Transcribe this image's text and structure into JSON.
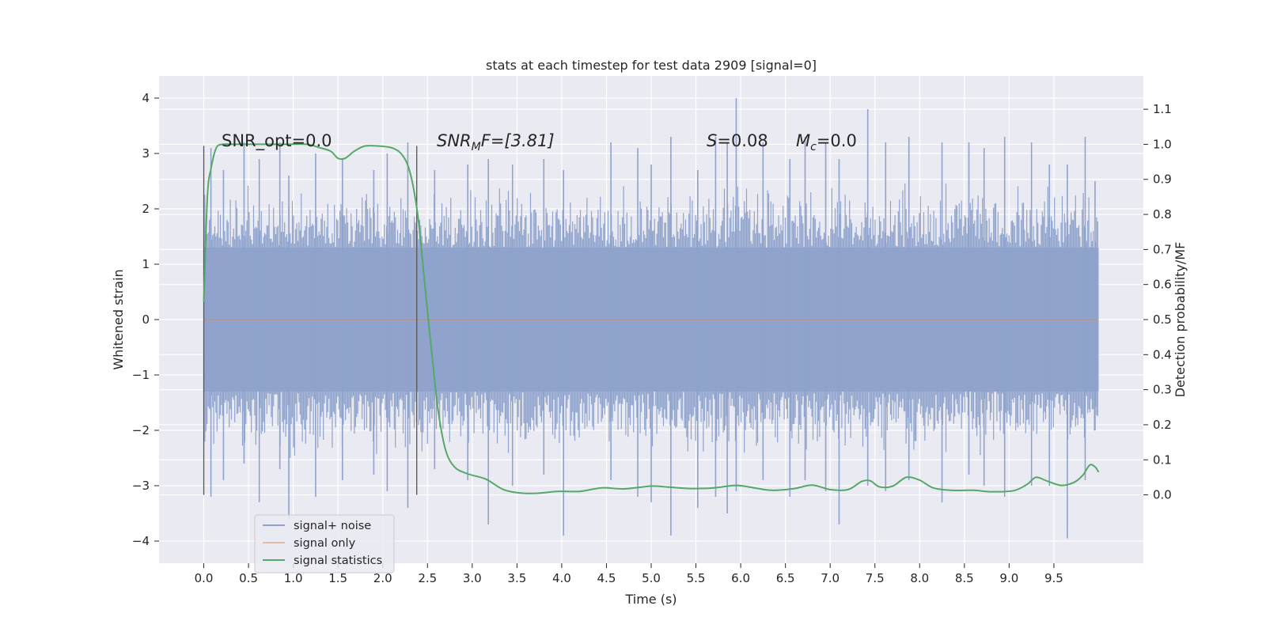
{
  "chart_data": {
    "type": "line",
    "title": "stats at each timestep for test data 2909 [signal=0]",
    "xlabel": "Time (s)",
    "ylabel": "Whitened strain",
    "y2label": "Detection probability/MF",
    "xlim": [
      -0.5,
      10.5
    ],
    "ylim": [
      -4.4,
      4.4
    ],
    "y2lim": [
      -0.195,
      1.195
    ],
    "grid": true,
    "legend_position": "lower-left",
    "x_ticks": [
      "0.0",
      "0.5",
      "1.0",
      "1.5",
      "2.0",
      "2.5",
      "3.0",
      "3.5",
      "4.0",
      "4.5",
      "5.0",
      "5.5",
      "6.0",
      "6.5",
      "7.0",
      "7.5",
      "8.0",
      "8.5",
      "9.0",
      "9.5"
    ],
    "y_ticks": [
      "4",
      "3",
      "2",
      "1",
      "0",
      "−1",
      "−2",
      "−3",
      "−4"
    ],
    "y2_ticks": [
      "1.1",
      "1.0",
      "0.9",
      "0.8",
      "0.7",
      "0.6",
      "0.5",
      "0.4",
      "0.3",
      "0.2",
      "0.1",
      "0.0"
    ],
    "annotations": {
      "snr_opt": "SNR_opt=0.0",
      "snr_mf_main": "SNR",
      "snr_mf_sub": "M",
      "snr_mf_tail": "F=[3.81]",
      "s_main": "S",
      "s_tail": "=0.08",
      "mc_main": "M",
      "mc_sub": "c",
      "mc_tail": "=0.0"
    },
    "window_markers": [
      0.0,
      2.38
    ],
    "series": [
      {
        "name": "signal+ noise",
        "color": "#8fa3cc",
        "description_kind": "noise band",
        "band_abs_max": 1.3,
        "typical_peak": 2.5,
        "extreme_peaks": [
          [
            0.08,
            3.1,
            -3.2
          ],
          [
            0.22,
            2.7,
            -2.9
          ],
          [
            0.45,
            3.2,
            -2.6
          ],
          [
            0.62,
            2.9,
            -3.3
          ],
          [
            0.85,
            3.2,
            -2.7
          ],
          [
            0.95,
            2.6,
            -3.6
          ],
          [
            1.25,
            3.0,
            -3.2
          ],
          [
            1.55,
            2.9,
            -2.9
          ],
          [
            1.9,
            2.7,
            -2.8
          ],
          [
            2.05,
            3.0,
            -3.1
          ],
          [
            2.28,
            3.2,
            -3.4
          ],
          [
            2.58,
            2.7,
            -2.7
          ],
          [
            2.95,
            2.8,
            -2.9
          ],
          [
            3.18,
            2.9,
            -3.7
          ],
          [
            3.45,
            2.8,
            -3.0
          ],
          [
            3.8,
            2.9,
            -2.8
          ],
          [
            4.02,
            2.7,
            -3.9
          ],
          [
            4.55,
            3.2,
            -2.9
          ],
          [
            4.85,
            3.1,
            -3.2
          ],
          [
            5.0,
            2.8,
            -3.3
          ],
          [
            5.22,
            3.3,
            -3.9
          ],
          [
            5.52,
            2.7,
            -3.4
          ],
          [
            5.72,
            3.3,
            -3.2
          ],
          [
            5.85,
            3.2,
            -3.5
          ],
          [
            5.95,
            4.0,
            -3.1
          ],
          [
            6.25,
            3.2,
            -2.9
          ],
          [
            6.55,
            2.9,
            -3.2
          ],
          [
            6.72,
            3.3,
            -2.9
          ],
          [
            6.95,
            3.2,
            -3.1
          ],
          [
            7.1,
            2.9,
            -3.7
          ],
          [
            7.42,
            3.8,
            -3.0
          ],
          [
            7.62,
            3.2,
            -3.1
          ],
          [
            7.88,
            3.3,
            -2.9
          ],
          [
            8.25,
            3.2,
            -3.3
          ],
          [
            8.55,
            3.2,
            -2.8
          ],
          [
            8.72,
            3.1,
            -3.0
          ],
          [
            8.95,
            3.3,
            -3.2
          ],
          [
            9.25,
            3.2,
            -3.0
          ],
          [
            9.45,
            2.8,
            -3.0
          ],
          [
            9.65,
            2.8,
            -3.95
          ],
          [
            9.85,
            3.3,
            -2.9
          ],
          [
            9.96,
            2.5,
            -2.0
          ]
        ]
      },
      {
        "name": "signal only",
        "color": "#dd8452",
        "x": [
          0.0,
          10.0
        ],
        "y": [
          0.0,
          0.0
        ]
      },
      {
        "name": "signal statistics",
        "color": "#55a868",
        "axis": "right",
        "x": [
          0.0,
          0.04,
          0.08,
          0.14,
          0.22,
          0.35,
          0.6,
          0.9,
          1.15,
          1.3,
          1.42,
          1.5,
          1.58,
          1.68,
          1.8,
          1.95,
          2.1,
          2.2,
          2.28,
          2.34,
          2.4,
          2.47,
          2.55,
          2.62,
          2.7,
          2.8,
          2.95,
          3.15,
          3.35,
          3.55,
          3.75,
          3.95,
          4.2,
          4.45,
          4.7,
          5.0,
          5.2,
          5.45,
          5.7,
          5.95,
          6.15,
          6.35,
          6.6,
          6.8,
          7.0,
          7.2,
          7.35,
          7.45,
          7.55,
          7.7,
          7.85,
          8.0,
          8.15,
          8.35,
          8.6,
          8.8,
          9.05,
          9.2,
          9.3,
          9.42,
          9.58,
          9.72,
          9.82,
          9.9,
          9.96,
          10.0
        ],
        "y": [
          0.55,
          0.85,
          0.93,
          0.99,
          1.0,
          1.0,
          1.0,
          1.0,
          1.0,
          0.99,
          0.98,
          0.96,
          0.96,
          0.98,
          0.995,
          0.995,
          0.99,
          0.975,
          0.94,
          0.88,
          0.78,
          0.6,
          0.4,
          0.24,
          0.13,
          0.08,
          0.06,
          0.045,
          0.015,
          0.005,
          0.005,
          0.01,
          0.01,
          0.02,
          0.017,
          0.025,
          0.022,
          0.018,
          0.02,
          0.027,
          0.02,
          0.013,
          0.018,
          0.028,
          0.015,
          0.015,
          0.038,
          0.04,
          0.023,
          0.025,
          0.05,
          0.042,
          0.02,
          0.013,
          0.013,
          0.009,
          0.012,
          0.03,
          0.05,
          0.04,
          0.027,
          0.035,
          0.055,
          0.085,
          0.08,
          0.065
        ]
      }
    ]
  }
}
